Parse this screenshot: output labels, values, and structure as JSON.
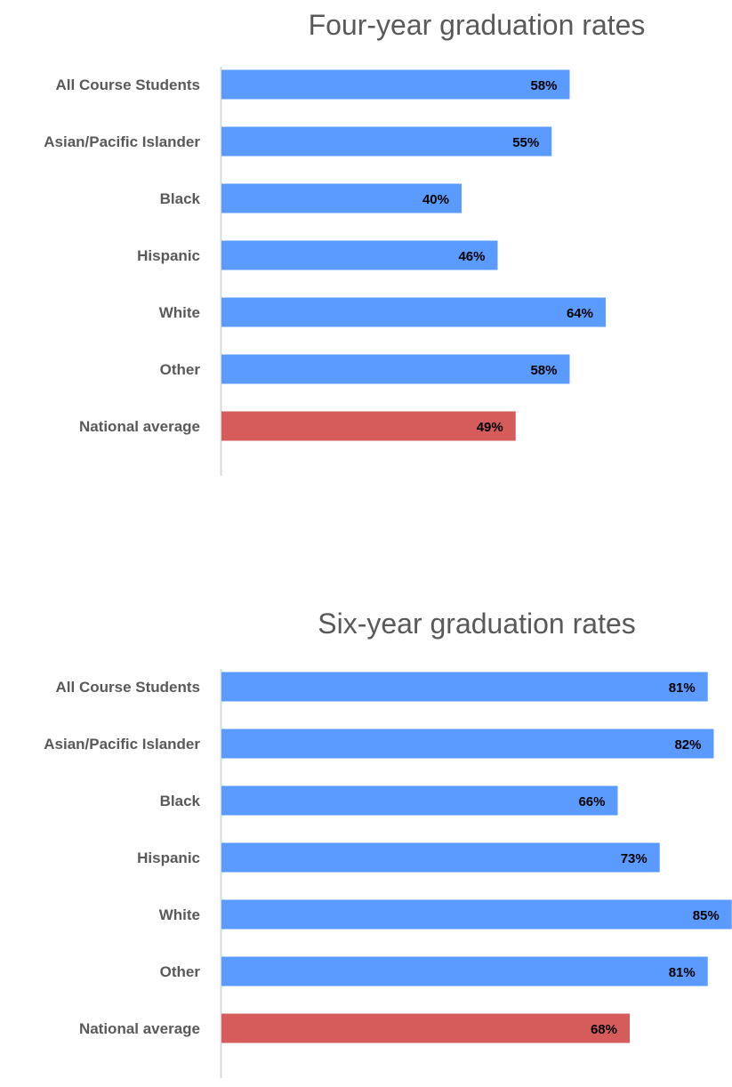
{
  "chart_data": [
    {
      "type": "bar",
      "orientation": "horizontal",
      "title": "Four-year graduation rates",
      "categories": [
        "All Course Students",
        "Asian/Pacific Islander",
        "Black",
        "Hispanic",
        "White",
        "Other",
        "National average"
      ],
      "values": [
        58,
        55,
        40,
        46,
        64,
        58,
        49
      ],
      "value_labels": [
        "58%",
        "55%",
        "40%",
        "46%",
        "64%",
        "58%",
        "49%"
      ],
      "bar_colors": [
        "#5b9bff",
        "#5b9bff",
        "#5b9bff",
        "#5b9bff",
        "#5b9bff",
        "#5b9bff",
        "#d65b5b"
      ],
      "grid": false,
      "legend": "none"
    },
    {
      "type": "bar",
      "orientation": "horizontal",
      "title": "Six-year graduation rates",
      "categories": [
        "All Course Students",
        "Asian/Pacific Islander",
        "Black",
        "Hispanic",
        "White",
        "Other",
        "National average"
      ],
      "values": [
        81,
        82,
        66,
        73,
        85,
        81,
        68
      ],
      "value_labels": [
        "81%",
        "82%",
        "66%",
        "73%",
        "85%",
        "81%",
        "68%"
      ],
      "bar_colors": [
        "#5b9bff",
        "#5b9bff",
        "#5b9bff",
        "#5b9bff",
        "#5b9bff",
        "#5b9bff",
        "#d65b5b"
      ],
      "grid": false,
      "legend": "none"
    }
  ],
  "colors": {
    "bar": "#5b9bff",
    "national_average": "#d65b5b",
    "axis": "#d9d9d9",
    "text": "#595959"
  }
}
